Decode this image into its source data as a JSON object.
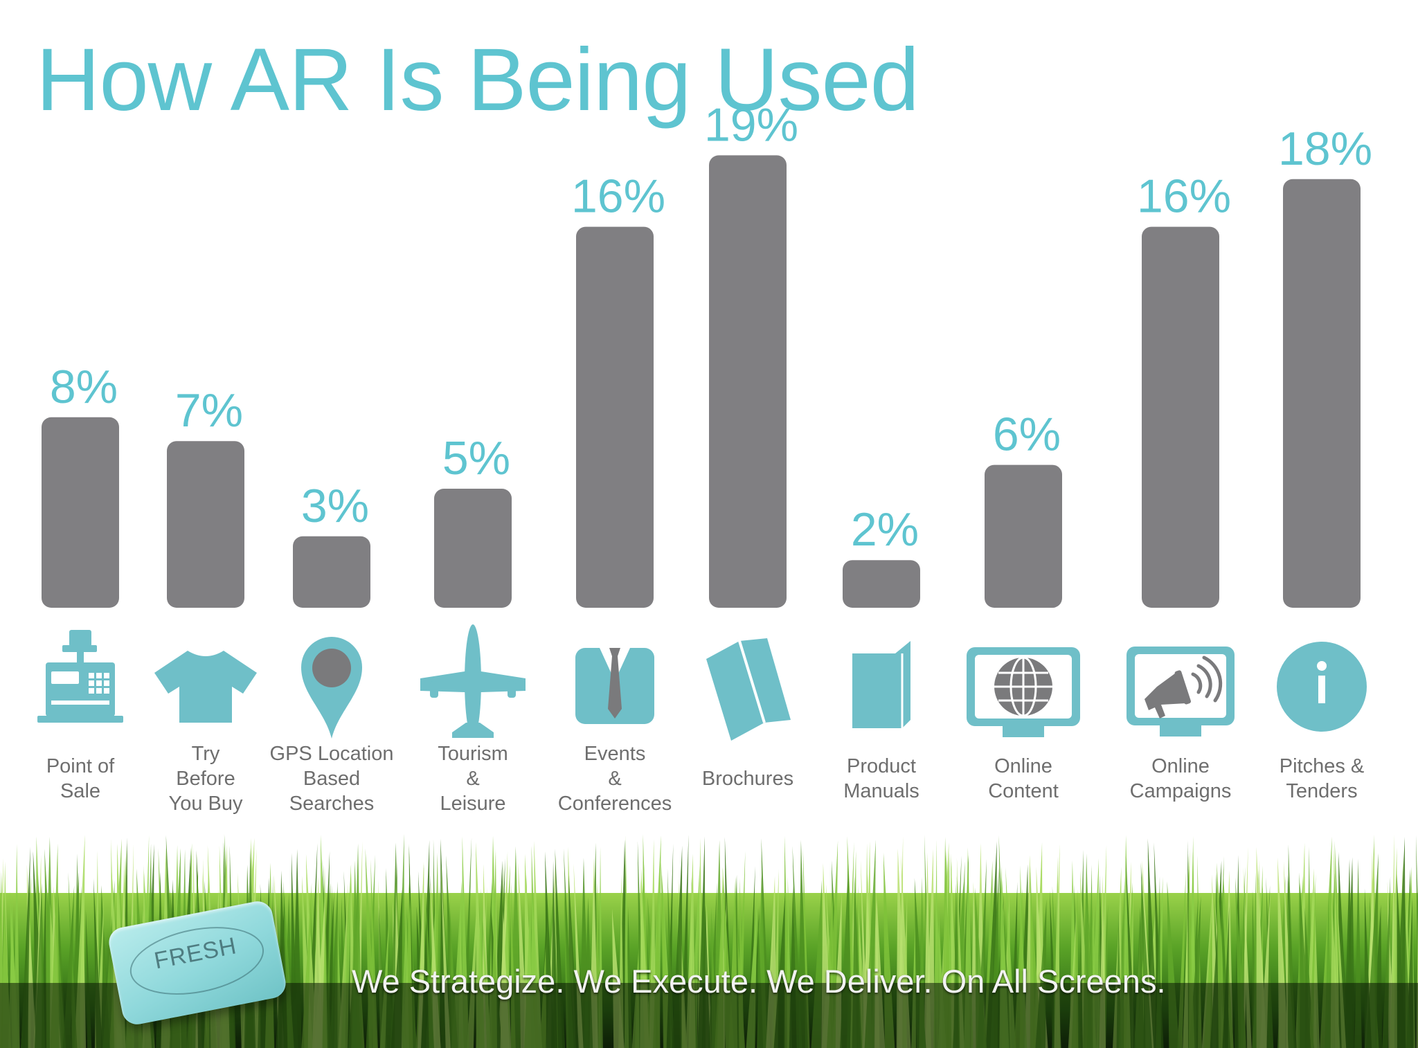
{
  "page": {
    "title": "How AR Is Being Used"
  },
  "chart_data": {
    "type": "bar",
    "title": "How AR Is Being Used",
    "xlabel": "",
    "ylabel": "",
    "ylim": [
      0,
      20
    ],
    "grid": false,
    "bar_color": "#807f82",
    "label_color": "#5ec4d0",
    "categories": [
      {
        "key": "point-of-sale",
        "lines": [
          "Point of",
          "Sale"
        ],
        "value": 8,
        "label": "8%",
        "icon": "cash-register-icon"
      },
      {
        "key": "try-before-you-buy",
        "lines": [
          "Try",
          "Before",
          "You Buy"
        ],
        "value": 7,
        "label": "7%",
        "icon": "tshirt-icon"
      },
      {
        "key": "gps-location",
        "lines": [
          "GPS Location",
          "Based",
          "Searches"
        ],
        "value": 3,
        "label": "3%",
        "icon": "map-pin-icon"
      },
      {
        "key": "tourism-leisure",
        "lines": [
          "Tourism",
          "&",
          "Leisure"
        ],
        "value": 5,
        "label": "5%",
        "icon": "airplane-icon"
      },
      {
        "key": "events-conferences",
        "lines": [
          "Events",
          "&",
          "Conferences"
        ],
        "value": 16,
        "label": "16%",
        "icon": "suit-tie-icon"
      },
      {
        "key": "brochures",
        "lines": [
          "Brochures"
        ],
        "value": 19,
        "label": "19%",
        "icon": "brochure-icon"
      },
      {
        "key": "product-manuals",
        "lines": [
          "Product",
          "Manuals"
        ],
        "value": 2,
        "label": "2%",
        "icon": "manual-icon"
      },
      {
        "key": "online-content",
        "lines": [
          "Online",
          "Content"
        ],
        "value": 6,
        "label": "6%",
        "icon": "globe-monitor-icon"
      },
      {
        "key": "online-campaigns",
        "lines": [
          "Online",
          "Campaigns"
        ],
        "value": 16,
        "label": "16%",
        "icon": "megaphone-monitor-icon"
      },
      {
        "key": "pitches-tenders",
        "lines": [
          "Pitches &",
          "Tenders"
        ],
        "value": 18,
        "label": "18%",
        "icon": "info-icon"
      }
    ]
  },
  "footer": {
    "tagline": "We Strategize. We Execute. We Deliver. On All Screens.",
    "logo_text": "FRESH"
  },
  "colors": {
    "accent": "#5ec4d0",
    "icon": "#6fbfc8",
    "bar": "#807f82",
    "label": "#6e6e6e"
  }
}
